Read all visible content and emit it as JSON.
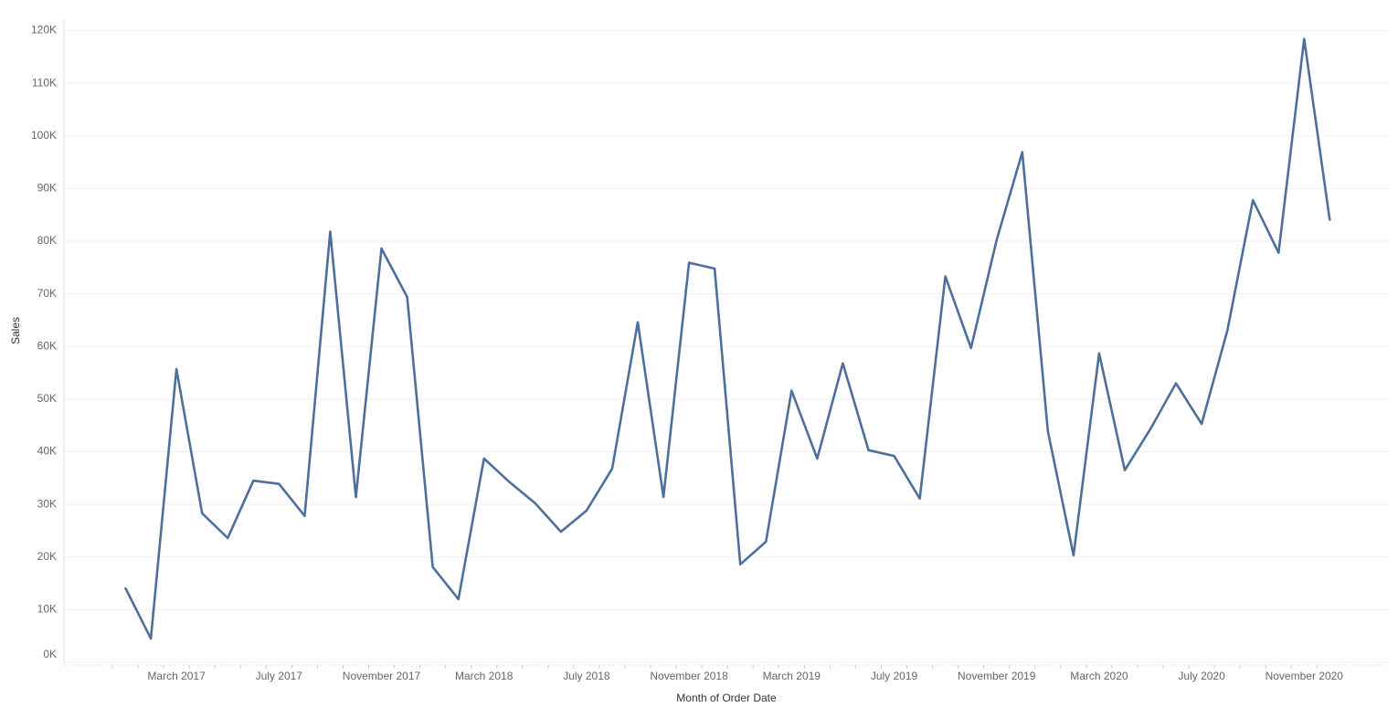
{
  "chart_data": {
    "type": "line",
    "x_label": "Month of Order Date",
    "y_label": "Sales",
    "categories": [
      null,
      null,
      "March 2017",
      null,
      null,
      null,
      "July 2017",
      null,
      null,
      null,
      "November 2017",
      null,
      null,
      null,
      "March 2018",
      null,
      null,
      null,
      "July 2018",
      null,
      null,
      null,
      "November 2018",
      null,
      null,
      null,
      "March 2019",
      null,
      null,
      null,
      "July 2019",
      null,
      null,
      null,
      "November 2019",
      null,
      null,
      null,
      "March 2020",
      null,
      null,
      null,
      "July 2020",
      null,
      null,
      null,
      "November 2020",
      null
    ],
    "series": [
      {
        "name": "Sales",
        "color": "#4e6f9c",
        "values": [
          14.2,
          4.5,
          55.7,
          28.3,
          23.6,
          34.5,
          33.9,
          27.8,
          81.8,
          31.4,
          78.6,
          69.4,
          18.1,
          12.0,
          38.7,
          34.2,
          30.2,
          24.8,
          28.8,
          36.8,
          64.6,
          31.4,
          75.9,
          74.8,
          18.6,
          22.9,
          51.6,
          38.7,
          56.8,
          40.3,
          39.2,
          31.1,
          73.3,
          59.7,
          80.2,
          96.9,
          43.9,
          20.3,
          58.7,
          36.5,
          44.3,
          53.0,
          45.3,
          63.0,
          87.8,
          77.8,
          118.4,
          83.9
        ]
      }
    ],
    "ylim": [
      0,
      122
    ],
    "yticks": [
      {
        "value": 0,
        "label": "0K"
      },
      {
        "value": 10,
        "label": "10K"
      },
      {
        "value": 20,
        "label": "20K"
      },
      {
        "value": 30,
        "label": "30K"
      },
      {
        "value": 40,
        "label": "40K"
      },
      {
        "value": 50,
        "label": "50K"
      },
      {
        "value": 60,
        "label": "60K"
      },
      {
        "value": 70,
        "label": "70K"
      },
      {
        "value": 80,
        "label": "80K"
      },
      {
        "value": 90,
        "label": "90K"
      },
      {
        "value": 100,
        "label": "100K"
      },
      {
        "value": 110,
        "label": "110K"
      },
      {
        "value": 120,
        "label": "120K"
      }
    ],
    "grid": true
  }
}
